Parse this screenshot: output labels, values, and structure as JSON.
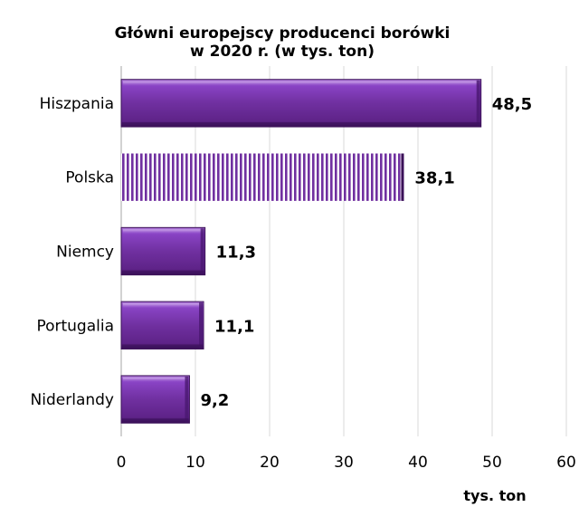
{
  "chart_data": {
    "type": "bar",
    "orientation": "horizontal",
    "title_lines": [
      "Główni europejscy producenci borówki",
      "w 2020 r. (w tys. ton)"
    ],
    "categories": [
      "Hiszpania",
      "Polska",
      "Niemcy",
      "Portugalia",
      "Niderlandy"
    ],
    "values": [
      48.5,
      38.1,
      11.3,
      11.1,
      9.2
    ],
    "value_labels": [
      "48,5",
      "38,1",
      "11,3",
      "11,1",
      "9,2"
    ],
    "highlighted_category": "Polska",
    "xlim": [
      0,
      60
    ],
    "xticks": [
      0,
      10,
      20,
      30,
      40,
      50,
      60
    ],
    "xlabel": "tys. ton",
    "ylabel": "",
    "grid": "vertical",
    "legend": "none",
    "bar_color": "#7030a0",
    "highlight_pattern": "vertical-stripes"
  }
}
